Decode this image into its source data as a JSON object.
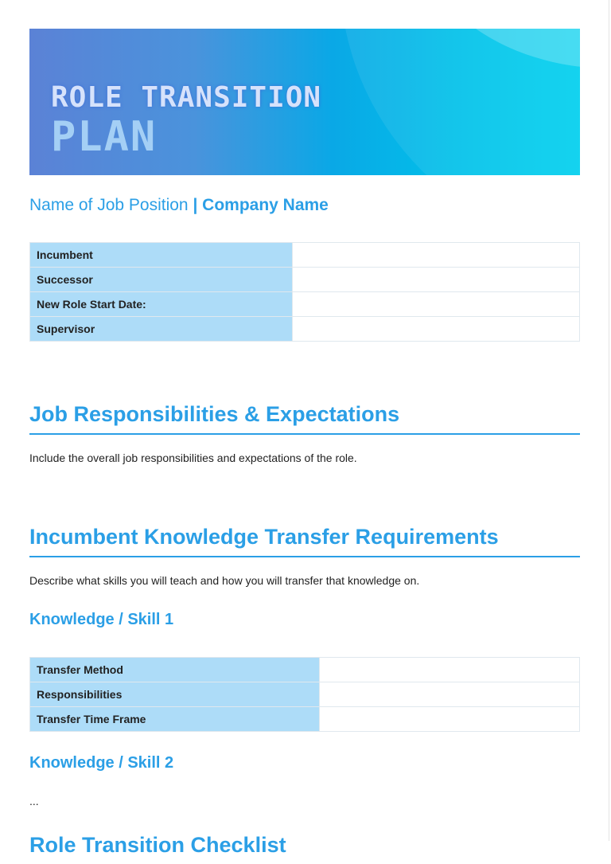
{
  "banner": {
    "line1": "ROLE TRANSITION",
    "line2": "PLAN"
  },
  "subtitle": {
    "position": "Name of Job Position",
    "separator": " | ",
    "company": "Company Name"
  },
  "info_table": [
    {
      "label": "Incumbent",
      "value": ""
    },
    {
      "label": "Successor",
      "value": ""
    },
    {
      "label": "New Role Start Date:",
      "value": ""
    },
    {
      "label": "Supervisor",
      "value": ""
    }
  ],
  "section1": {
    "title": "Job Responsibilities & Expectations",
    "text": "Include the overall job responsibilities and expectations of the role."
  },
  "section2": {
    "title": "Incumbent Knowledge Transfer Requirements",
    "text": "Describe what skills you will teach and how you will transfer that knowledge on.",
    "skill1": {
      "title": "Knowledge / Skill 1",
      "rows": [
        {
          "label": "Transfer Method",
          "value": ""
        },
        {
          "label": "Responsibilities",
          "value": ""
        },
        {
          "label": "Transfer Time Frame",
          "value": ""
        }
      ]
    },
    "skill2": {
      "title": "Knowledge / Skill 2",
      "text": "..."
    }
  },
  "section3": {
    "title": "Role Transition Checklist"
  }
}
